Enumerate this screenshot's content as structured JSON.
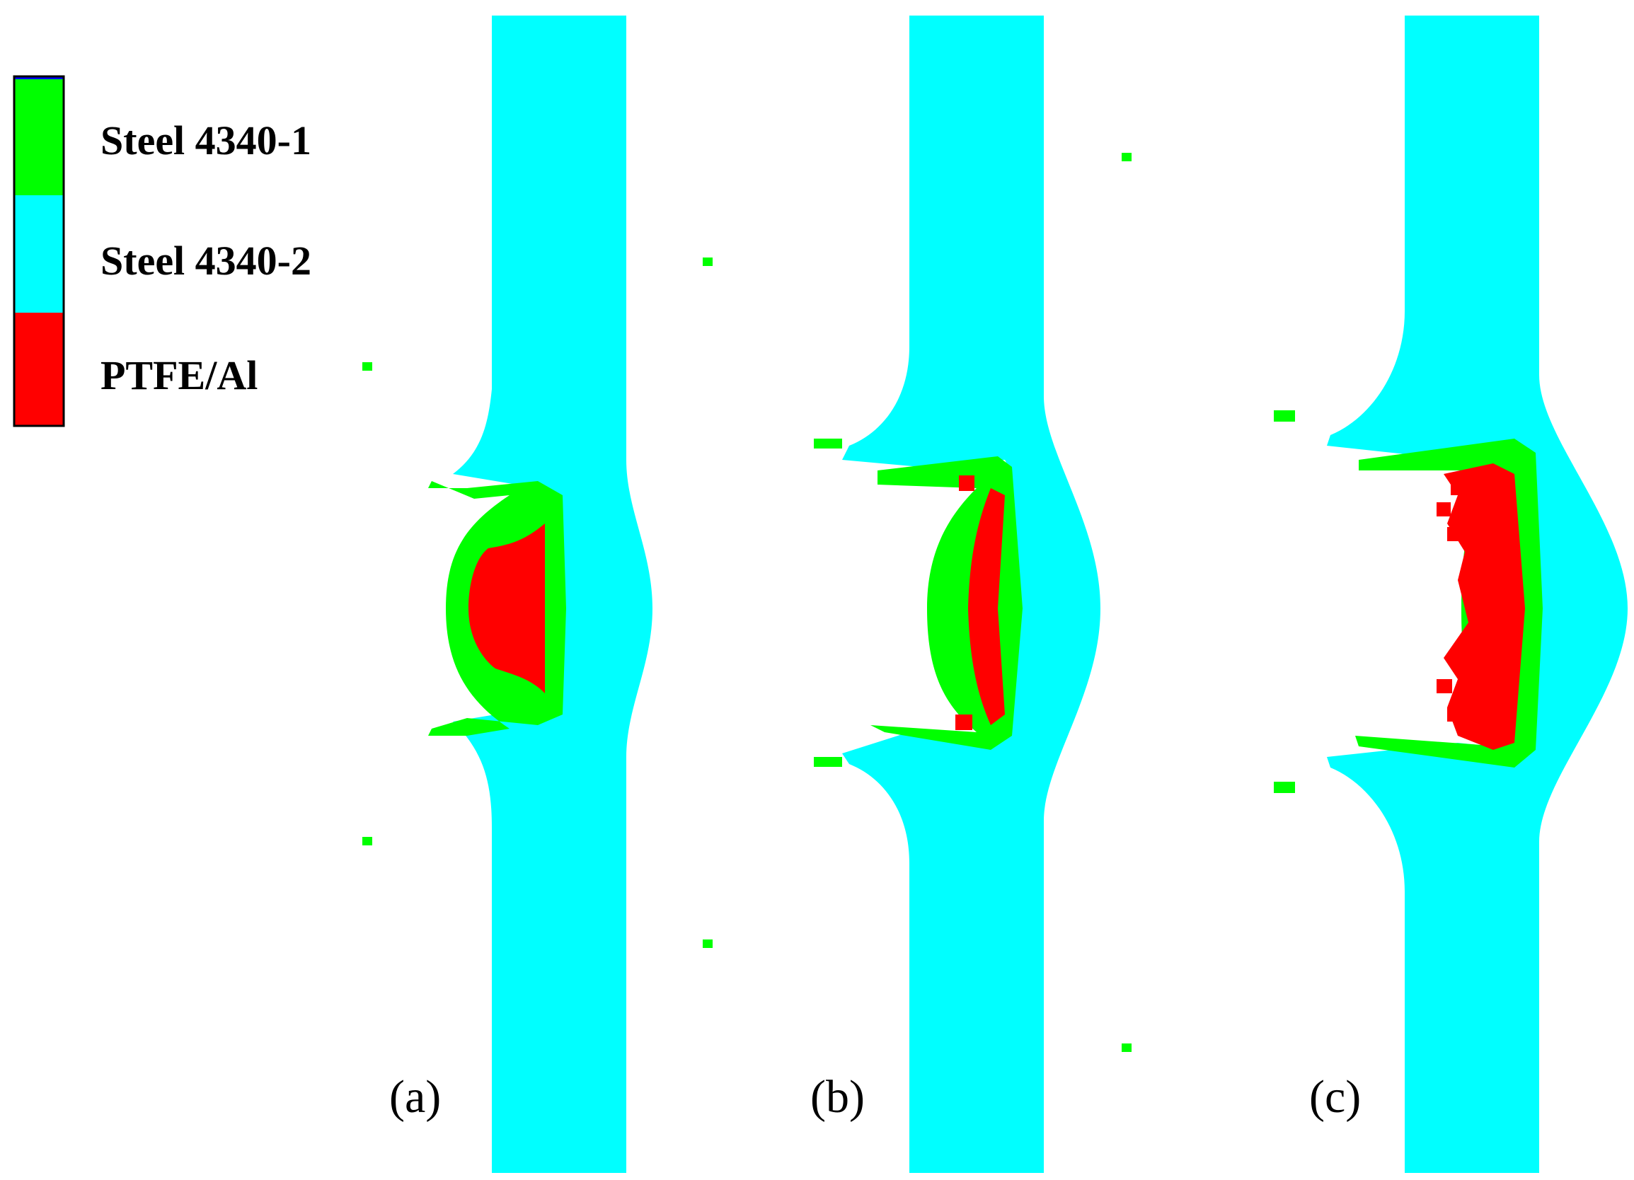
{
  "legend": {
    "items": [
      {
        "label": "Steel 4340-1",
        "color": "#00ff00"
      },
      {
        "label": "Steel 4340-2",
        "color": "#00ffff"
      },
      {
        "label": "PTFE/Al",
        "color": "#ff0000"
      }
    ],
    "top_edge_color": "#0000ff"
  },
  "panels": [
    {
      "label": "(a)"
    },
    {
      "label": "(b)"
    },
    {
      "label": "(c)"
    }
  ]
}
